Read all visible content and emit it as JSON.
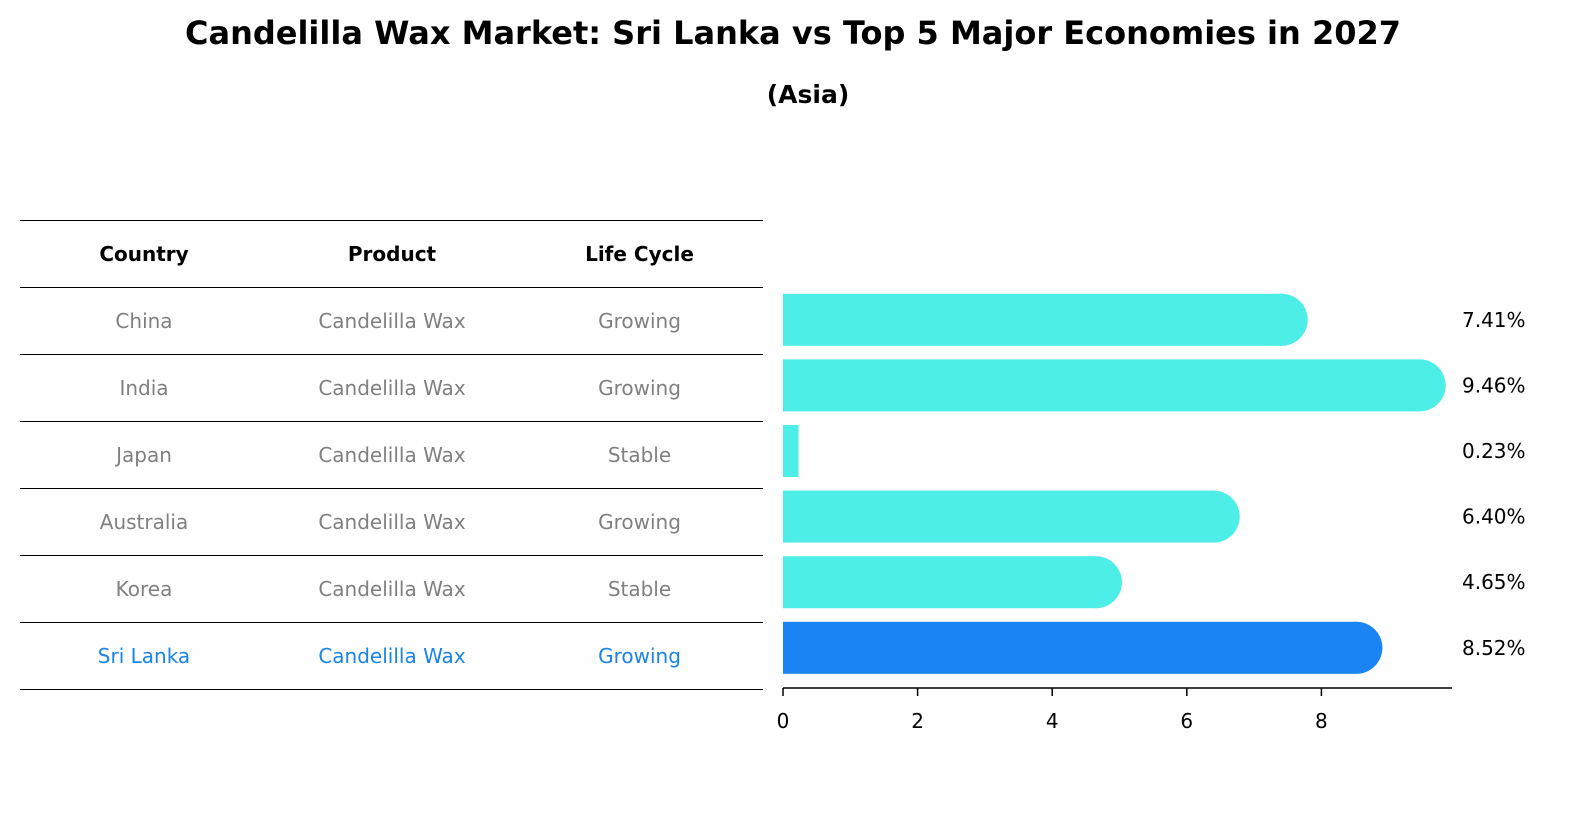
{
  "title": "Candelilla Wax Market: Sri Lanka vs Top 5 Major Economies in 2027",
  "subtitle": "(Asia)",
  "table": {
    "headers": [
      "Country",
      "Product",
      "Life Cycle"
    ],
    "rows": [
      {
        "country": "China",
        "product": "Candelilla Wax",
        "life_cycle": "Growing"
      },
      {
        "country": "India",
        "product": "Candelilla Wax",
        "life_cycle": "Growing"
      },
      {
        "country": "Japan",
        "product": "Candelilla Wax",
        "life_cycle": "Stable"
      },
      {
        "country": "Australia",
        "product": "Candelilla Wax",
        "life_cycle": "Growing"
      },
      {
        "country": "Korea",
        "product": "Candelilla Wax",
        "life_cycle": "Stable"
      },
      {
        "country": "Sri Lanka",
        "product": "Candelilla Wax",
        "life_cycle": "Growing"
      }
    ]
  },
  "chart_data": {
    "type": "bar",
    "orientation": "horizontal",
    "categories": [
      "China",
      "India",
      "Japan",
      "Australia",
      "Korea",
      "Sri Lanka"
    ],
    "values": [
      7.41,
      9.46,
      0.23,
      6.4,
      4.65,
      8.52
    ],
    "value_labels": [
      "7.41%",
      "9.46%",
      "0.23%",
      "6.40%",
      "4.65%",
      "8.52%"
    ],
    "highlight": "Sri Lanka",
    "xlim": [
      0,
      9.96
    ],
    "xticks": [
      0,
      2,
      4,
      6,
      8
    ],
    "xlabel": "",
    "ylabel": "",
    "colors": {
      "default": "#4deee8",
      "highlight": "#1a84f5"
    }
  }
}
